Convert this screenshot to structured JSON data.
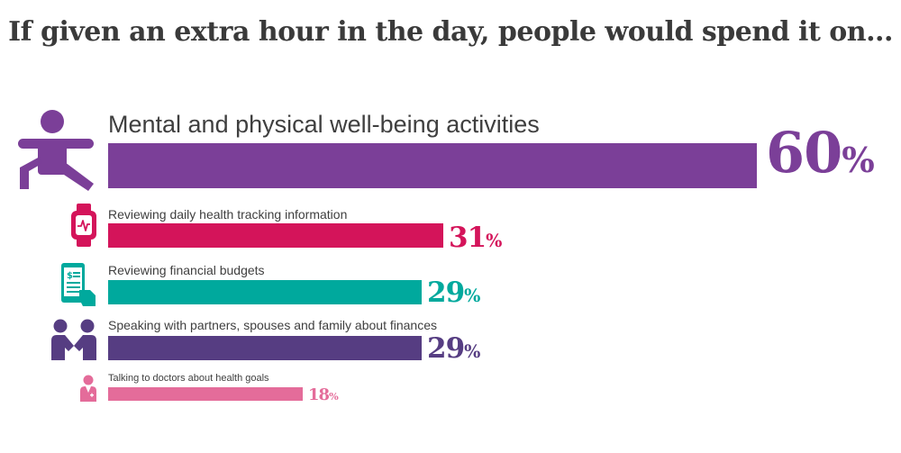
{
  "title": "If given an extra hour in the day, people would spend it on...",
  "chart_data": {
    "type": "bar",
    "title": "If given an extra hour in the day, people would spend it on...",
    "categories": [
      "Mental and physical well-being activities",
      "Reviewing daily health tracking information",
      "Reviewing financial budgets",
      "Speaking with partners, spouses and family about finances",
      "Talking to doctors about health goals"
    ],
    "values": [
      60,
      31,
      29,
      29,
      18
    ],
    "unit": "%",
    "xlim": [
      0,
      60
    ],
    "grid": false,
    "legend": "none",
    "colors": [
      "#7b3f98",
      "#d4145a",
      "#00a99d",
      "#563d82",
      "#e46c9a"
    ],
    "icons": [
      "stretching-person-icon",
      "smartwatch-icon",
      "phone-budget-icon",
      "two-people-icon",
      "doctor-icon"
    ]
  },
  "rows": [
    {
      "label": "Mental and physical well-being activities",
      "value": "60",
      "unit": "%"
    },
    {
      "label": "Reviewing daily health tracking information",
      "value": "31",
      "unit": "%"
    },
    {
      "label": "Reviewing financial budgets",
      "value": "29",
      "unit": "%"
    },
    {
      "label": "Speaking with partners, spouses and family about finances",
      "value": "29",
      "unit": "%"
    },
    {
      "label": "Talking to doctors about health goals",
      "value": "18",
      "unit": "%"
    }
  ]
}
